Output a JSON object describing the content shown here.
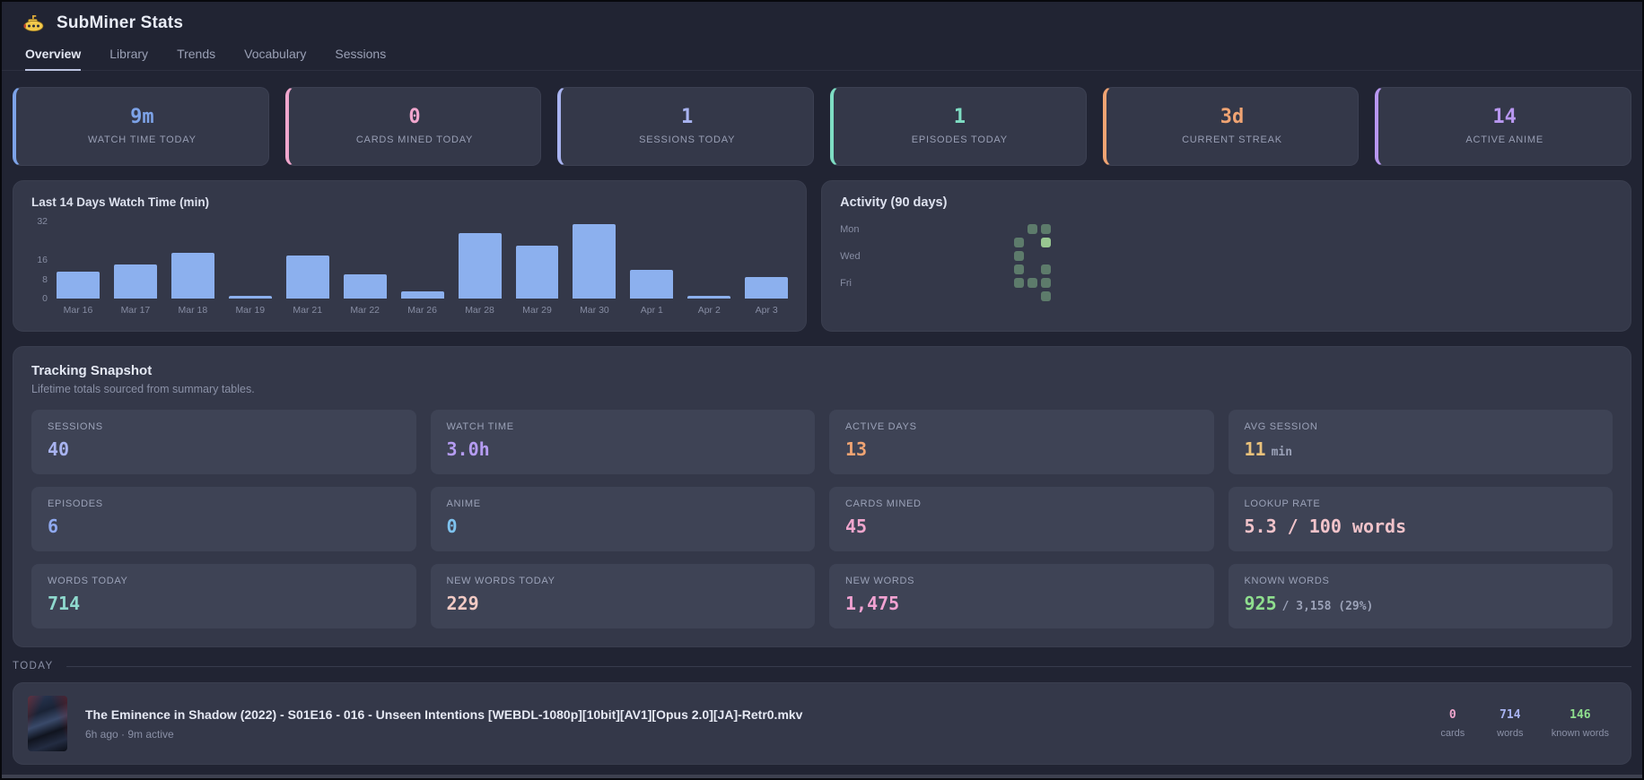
{
  "header": {
    "title": "SubMiner Stats"
  },
  "tabs": [
    {
      "label": "Overview",
      "active": true
    },
    {
      "label": "Library",
      "active": false
    },
    {
      "label": "Trends",
      "active": false
    },
    {
      "label": "Vocabulary",
      "active": false
    },
    {
      "label": "Sessions",
      "active": false
    }
  ],
  "stat_cards": [
    {
      "value": "9m",
      "label": "WATCH TIME TODAY",
      "color": "#7da3e8"
    },
    {
      "value": "0",
      "label": "CARDS MINED TODAY",
      "color": "#f0a6cd"
    },
    {
      "value": "1",
      "label": "SESSIONS TODAY",
      "color": "#a8b3f0"
    },
    {
      "value": "1",
      "label": "EPISODES TODAY",
      "color": "#7eddc3"
    },
    {
      "value": "3d",
      "label": "CURRENT STREAK",
      "color": "#f0a473"
    },
    {
      "value": "14",
      "label": "ACTIVE ANIME",
      "color": "#b897f0"
    }
  ],
  "chart_data": [
    {
      "type": "bar",
      "title": "Last 14 Days Watch Time (min)",
      "categories": [
        "Mar 16",
        "Mar 17",
        "Mar 18",
        "Mar 19",
        "Mar 21",
        "Mar 22",
        "Mar 26",
        "Mar 28",
        "Mar 29",
        "Mar 30",
        "Apr 1",
        "Apr 2",
        "Apr 3"
      ],
      "values": [
        11,
        14,
        19,
        1,
        18,
        10,
        3,
        27,
        22,
        31,
        12,
        1,
        9
      ],
      "xlabel": "",
      "ylabel": "",
      "ylim": [
        0,
        32
      ],
      "yticks": [
        0,
        8,
        16,
        32
      ],
      "grid": false,
      "bar_color": "#8cb0ee"
    },
    {
      "type": "heatmap",
      "title": "Activity (90 days)",
      "rows": [
        "Mon",
        "Tue",
        "Wed",
        "Thu",
        "Fri",
        "Sat",
        "Sun"
      ],
      "row_labels_shown": [
        "Mon",
        "Wed",
        "Fri"
      ],
      "columns": 13,
      "filled_cells": [
        {
          "row": 0,
          "col": 11,
          "level": "dim"
        },
        {
          "row": 0,
          "col": 12,
          "level": "dim"
        },
        {
          "row": 1,
          "col": 10,
          "level": "dim"
        },
        {
          "row": 1,
          "col": 12,
          "level": "bright"
        },
        {
          "row": 2,
          "col": 10,
          "level": "dim"
        },
        {
          "row": 3,
          "col": 10,
          "level": "dim"
        },
        {
          "row": 3,
          "col": 12,
          "level": "dim"
        },
        {
          "row": 4,
          "col": 10,
          "level": "dim"
        },
        {
          "row": 4,
          "col": 11,
          "level": "dim"
        },
        {
          "row": 4,
          "col": 12,
          "level": "dim"
        },
        {
          "row": 5,
          "col": 12,
          "level": "dim"
        }
      ],
      "colors": {
        "dim": "#5d7b6b",
        "bright": "#99c791"
      }
    }
  ],
  "snapshot": {
    "title": "Tracking Snapshot",
    "subtitle": "Lifetime totals sourced from summary tables.",
    "tiles": [
      {
        "label": "SESSIONS",
        "value": "40",
        "suffix": "",
        "color": "#a8b3f0"
      },
      {
        "label": "WATCH TIME",
        "value": "3.0h",
        "suffix": "",
        "color": "#b59cf2"
      },
      {
        "label": "ACTIVE DAYS",
        "value": "13",
        "suffix": "",
        "color": "#f0a473"
      },
      {
        "label": "AVG SESSION",
        "value": "11",
        "suffix": "min",
        "color": "#eac27b"
      },
      {
        "label": "EPISODES",
        "value": "6",
        "suffix": "",
        "color": "#8fa9ef"
      },
      {
        "label": "ANIME",
        "value": "0",
        "suffix": "",
        "color": "#7ec2ee"
      },
      {
        "label": "CARDS MINED",
        "value": "45",
        "suffix": "",
        "color": "#f0a6cd"
      },
      {
        "label": "LOOKUP RATE",
        "value": "5.3 / 100 words",
        "suffix": "",
        "color": "#f1c3ca"
      },
      {
        "label": "WORDS TODAY",
        "value": "714",
        "suffix": "",
        "color": "#8fd9ce"
      },
      {
        "label": "NEW WORDS TODAY",
        "value": "229",
        "suffix": "",
        "color": "#f2cac4"
      },
      {
        "label": "NEW WORDS",
        "value": "1,475",
        "suffix": "",
        "color": "#f2a2d2"
      },
      {
        "label": "KNOWN WORDS",
        "value": "925",
        "suffix": "/ 3,158 (29%)",
        "color": "#8fdf8e"
      }
    ]
  },
  "today": {
    "section_label": "TODAY",
    "entry": {
      "title": "The Eminence in Shadow (2022) - S01E16 - 016 - Unseen Intentions [WEBDL-1080p][10bit][AV1][Opus 2.0][JA]-Retr0.mkv",
      "meta": "6h ago · 9m active",
      "stats": [
        {
          "value": "0",
          "label": "cards",
          "color": "#f0a6cd"
        },
        {
          "value": "714",
          "label": "words",
          "color": "#a8b3f0"
        },
        {
          "value": "146",
          "label": "known words",
          "color": "#8fdf8e"
        }
      ]
    }
  }
}
